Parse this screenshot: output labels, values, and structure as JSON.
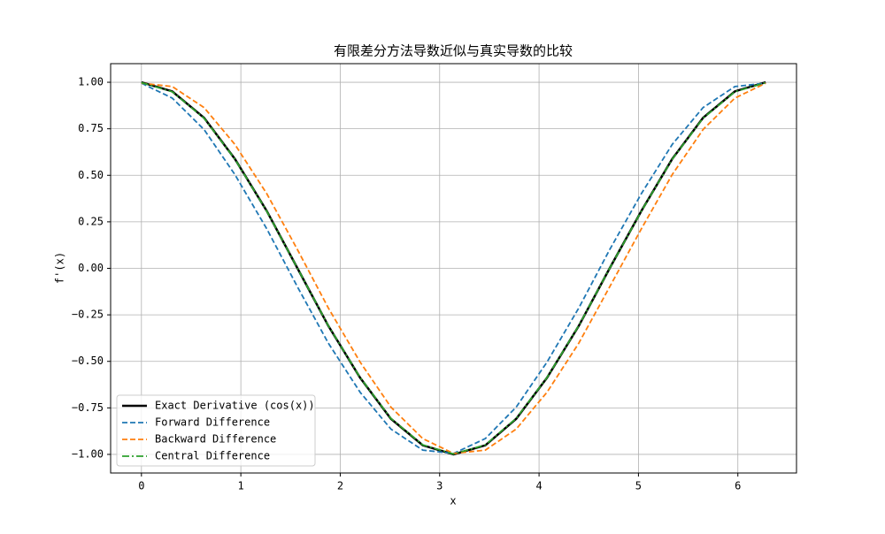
{
  "chart_data": {
    "type": "line",
    "title": "有限差分方法导数近似与真实导数的比较",
    "x_label": "x",
    "y_label": "f'(x)",
    "x": [
      0,
      0.31,
      0.63,
      0.94,
      1.26,
      1.57,
      1.88,
      2.2,
      2.51,
      2.83,
      3.14,
      3.46,
      3.77,
      4.08,
      4.4,
      4.71,
      5.03,
      5.34,
      5.65,
      5.97,
      6.28
    ],
    "series": [
      {
        "name": "Exact Derivative (cos(x))",
        "color": "#000000",
        "style": "solid",
        "width": 2.5,
        "values": [
          1,
          0.951,
          0.809,
          0.588,
          0.309,
          0,
          -0.309,
          -0.588,
          -0.809,
          -0.951,
          -1,
          -0.951,
          -0.809,
          -0.588,
          -0.309,
          0,
          0.309,
          0.588,
          0.809,
          0.951,
          1
        ]
      },
      {
        "name": "Forward Difference",
        "color": "#1f77b4",
        "style": "dashed",
        "width": 1.8,
        "values": [
          0.995,
          0.915,
          0.746,
          0.504,
          0.213,
          -0.1,
          -0.402,
          -0.666,
          -0.864,
          -0.977,
          -0.995,
          -0.915,
          -0.746,
          -0.504,
          -0.213,
          0.1,
          0.402,
          0.666,
          0.864,
          0.977,
          0.995
        ]
      },
      {
        "name": "Backward Difference",
        "color": "#ff7f0e",
        "style": "dashed",
        "width": 1.8,
        "values": [
          0.995,
          0.977,
          0.864,
          0.666,
          0.402,
          0.1,
          -0.213,
          -0.504,
          -0.746,
          -0.915,
          -0.995,
          -0.977,
          -0.864,
          -0.666,
          -0.402,
          -0.1,
          0.213,
          0.504,
          0.746,
          0.915,
          0.995
        ]
      },
      {
        "name": "Central Difference",
        "color": "#2ca02c",
        "style": "dashdot",
        "width": 1.8,
        "values": [
          0.998,
          0.949,
          0.807,
          0.587,
          0.308,
          0,
          -0.308,
          -0.587,
          -0.807,
          -0.949,
          -0.998,
          -0.949,
          -0.807,
          -0.587,
          -0.308,
          0,
          0.308,
          0.587,
          0.807,
          0.949,
          0.998
        ]
      }
    ],
    "xlim": [
      -0.31,
      6.59
    ],
    "ylim": [
      -1.1,
      1.1
    ],
    "xticks": [
      0,
      1,
      2,
      3,
      4,
      5,
      6
    ],
    "yticks": [
      {
        "value": -1,
        "label": "−1.00"
      },
      {
        "value": -0.75,
        "label": "−0.75"
      },
      {
        "value": -0.5,
        "label": "−0.50"
      },
      {
        "value": -0.25,
        "label": "−0.25"
      },
      {
        "value": 0,
        "label": "0.00"
      },
      {
        "value": 0.25,
        "label": "0.25"
      },
      {
        "value": 0.5,
        "label": "0.50"
      },
      {
        "value": 0.75,
        "label": "0.75"
      },
      {
        "value": 1,
        "label": "1.00"
      }
    ],
    "grid": true,
    "legend": "lower left"
  }
}
